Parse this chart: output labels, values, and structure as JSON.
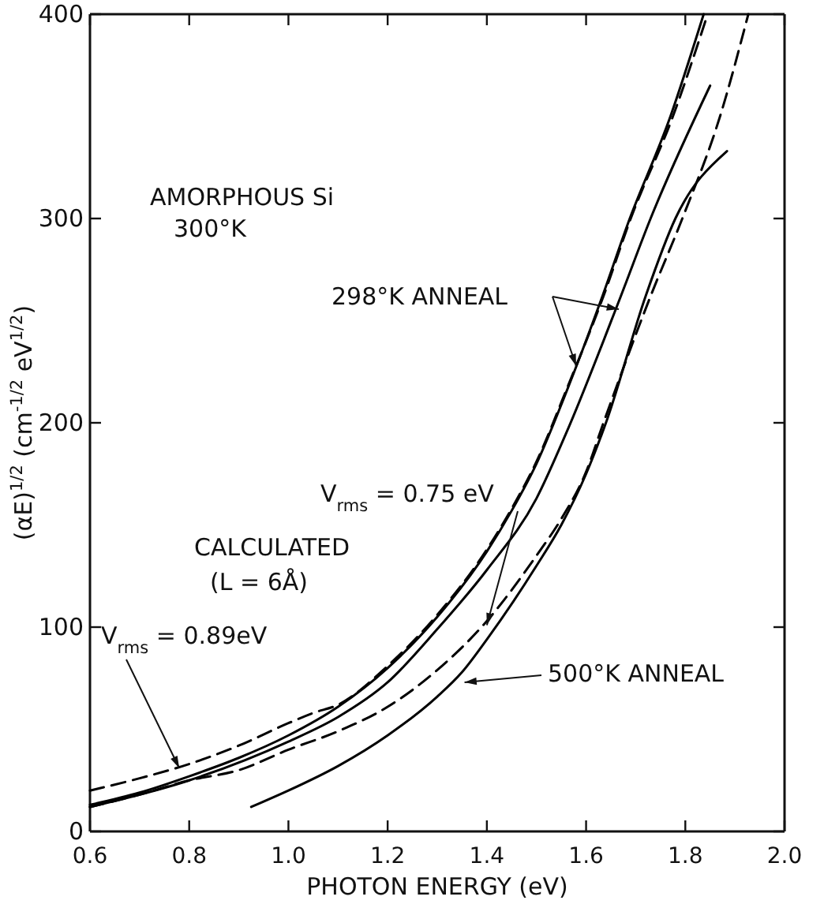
{
  "chart_data": {
    "type": "line",
    "xlabel": "PHOTON ENERGY (eV)",
    "ylabel": "(αE)$^{1/2}$ (cm$^{-1/2}$ eV$^{1/2}$)",
    "xlim": [
      0.6,
      2.0
    ],
    "xticks": [
      {
        "value": 0.6,
        "label": "0.6"
      },
      {
        "value": 0.8,
        "label": "0.8"
      },
      {
        "value": 1.0,
        "label": "1.0"
      },
      {
        "value": 1.2,
        "label": "1.2"
      },
      {
        "value": 1.4,
        "label": "1.4"
      },
      {
        "value": 1.6,
        "label": "1.6"
      },
      {
        "value": 1.8,
        "label": "1.8"
      },
      {
        "value": 2.0,
        "label": "2.0"
      }
    ],
    "ylim": [
      0,
      400
    ],
    "yticks": [
      0,
      100,
      200,
      300,
      400
    ],
    "grid": false,
    "marker": "none",
    "series": [
      {
        "color": "#000000",
        "line_style": "solid",
        "x": [
          0.6,
          0.7,
          0.8,
          0.9,
          1.0,
          1.1,
          1.2,
          1.3,
          1.4,
          1.45,
          1.5,
          1.56,
          1.63,
          1.685,
          1.77,
          1.837
        ],
        "values": [
          13,
          19,
          27,
          36,
          47,
          61,
          80,
          105,
          137,
          157,
          180,
          215,
          260,
          298,
          350,
          400
        ]
      },
      {
        "color": "#000000",
        "line_style": "solid",
        "x": [
          0.6,
          0.8,
          1.0,
          1.1,
          1.2,
          1.3,
          1.4,
          1.5,
          1.56,
          1.67,
          1.73,
          1.85
        ],
        "values": [
          12,
          25,
          44,
          56,
          73,
          99,
          128,
          163,
          195,
          262,
          300,
          365
        ]
      },
      {
        "color": "#000000",
        "line_style": "solid",
        "x": [
          0.925,
          1.0,
          1.1,
          1.2,
          1.3,
          1.35,
          1.4,
          1.5,
          1.55,
          1.6,
          1.64,
          1.72,
          1.78,
          1.884
        ],
        "values": [
          12,
          20,
          32,
          47,
          66,
          78,
          94,
          130,
          150,
          175,
          200,
          262,
          300,
          333
        ]
      },
      {
        "color": "#000000",
        "line_style": "dashed",
        "x": [
          0.6,
          0.7,
          0.8,
          0.9,
          1.0,
          1.05,
          1.1,
          1.2,
          1.3,
          1.4,
          1.45,
          1.5,
          1.56,
          1.635,
          1.69,
          1.775,
          1.845
        ],
        "values": [
          20,
          26,
          33,
          42,
          53,
          58,
          62,
          81,
          106,
          138,
          158,
          181,
          216,
          262,
          300,
          350,
          400
        ]
      },
      {
        "color": "#000000",
        "line_style": "dashed",
        "x": [
          0.6,
          0.7,
          0.8,
          0.9,
          1.0,
          1.1,
          1.2,
          1.3,
          1.4,
          1.5,
          1.55,
          1.6,
          1.635,
          1.73,
          1.794,
          1.87,
          1.927
        ],
        "values": [
          12,
          18,
          25,
          30,
          40,
          49,
          61,
          79,
          103,
          135,
          153,
          176,
          200,
          262,
          300,
          350,
          400
        ]
      }
    ],
    "annotations": [
      "AMORPHOUS Si",
      "300°K",
      "298°K ANNEAL",
      {
        "text": "V$_{rms}$ = 0.75 eV",
        "x": 1.4,
        "y": 101
      },
      "CALCULATED",
      "(L = 6Å)",
      {
        "text": "V$_{rms}$ = 0.89eV",
        "x": 0.78,
        "y": 31
      },
      {
        "text": "500°K ANNEAL",
        "x": 1.355,
        "y": 73
      }
    ]
  }
}
